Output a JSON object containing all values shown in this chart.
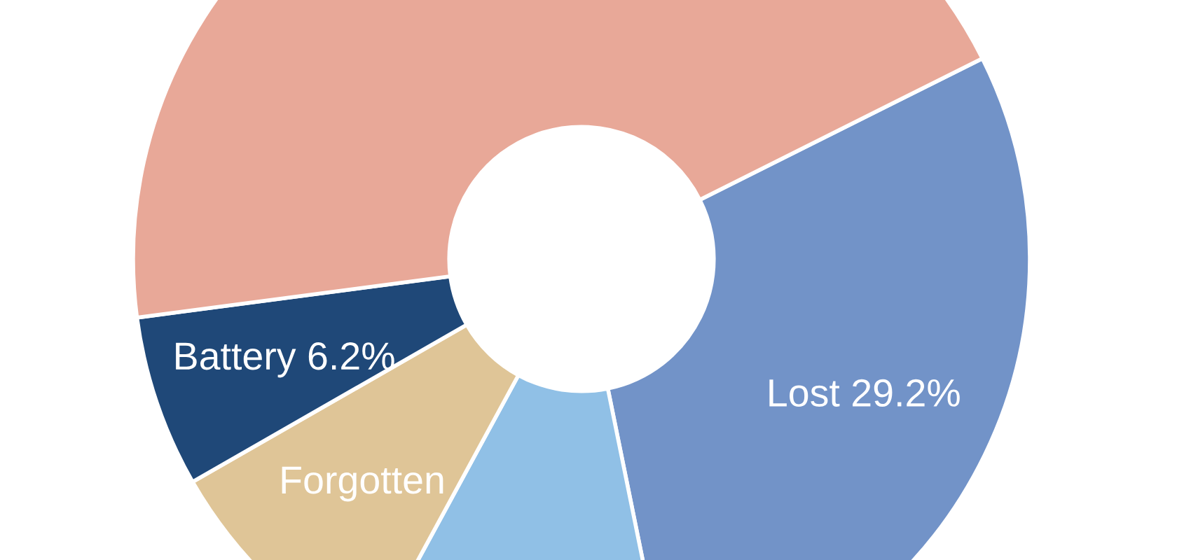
{
  "chart_data": {
    "type": "donut",
    "categories": [
      "Lost",
      null,
      "Forgotten",
      "Battery",
      null
    ],
    "values": [
      29.2,
      11.1,
      8.8,
      6.2,
      44.7
    ],
    "value_labels": [
      "29.2%",
      null,
      null,
      "6.2%",
      null
    ],
    "colors": [
      "#7293c8",
      "#90c0e6",
      "#dfc597",
      "#1f4878",
      "#e8a898"
    ]
  }
}
